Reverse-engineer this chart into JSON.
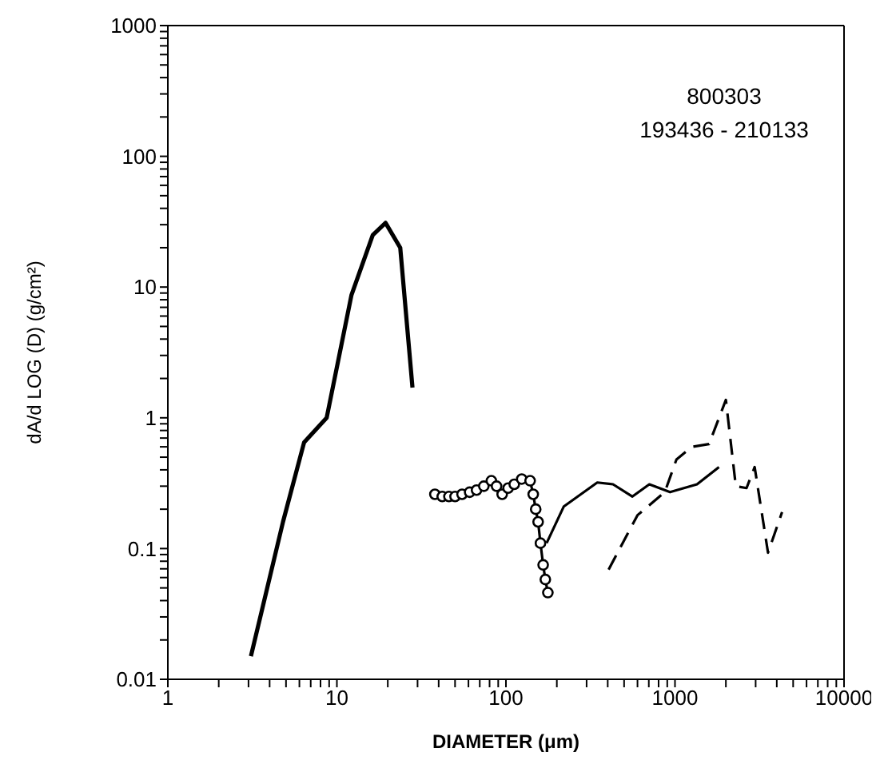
{
  "chart_data": {
    "type": "line",
    "xlabel": "DIAMETER  (μm)",
    "ylabel": "dA/d LOG (D)  (g/cm²)",
    "annotations": [
      "800303",
      "193436 - 210133"
    ],
    "log": "xy",
    "xlim": [
      1,
      10000
    ],
    "ylim": [
      0.01,
      1000
    ],
    "xticks": [
      1,
      {
        "value": 2,
        "label": null
      },
      {
        "value": 3,
        "label": null
      },
      {
        "value": 4,
        "label": null
      },
      {
        "value": 5,
        "label": null
      },
      {
        "value": 6,
        "label": null
      },
      {
        "value": 7,
        "label": null
      },
      {
        "value": 8,
        "label": null
      },
      {
        "value": 9,
        "label": null
      },
      10,
      {
        "value": 20,
        "label": null
      },
      {
        "value": 30,
        "label": null
      },
      {
        "value": 40,
        "label": null
      },
      {
        "value": 50,
        "label": null
      },
      {
        "value": 60,
        "label": null
      },
      {
        "value": 70,
        "label": null
      },
      {
        "value": 80,
        "label": null
      },
      {
        "value": 90,
        "label": null
      },
      100,
      {
        "value": 200,
        "label": null
      },
      {
        "value": 300,
        "label": null
      },
      {
        "value": 400,
        "label": null
      },
      {
        "value": 500,
        "label": null
      },
      {
        "value": 600,
        "label": null
      },
      {
        "value": 700,
        "label": null
      },
      {
        "value": 800,
        "label": null
      },
      {
        "value": 900,
        "label": null
      },
      1000,
      {
        "value": 2000,
        "label": null
      },
      {
        "value": 3000,
        "label": null
      },
      {
        "value": 4000,
        "label": null
      },
      {
        "value": 5000,
        "label": null
      },
      {
        "value": 6000,
        "label": null
      },
      {
        "value": 7000,
        "label": null
      },
      {
        "value": 8000,
        "label": null
      },
      {
        "value": 9000,
        "label": null
      },
      10000
    ],
    "yticks": [
      {
        "value": 0.01,
        "label": "0.01"
      },
      {
        "value": 0.02,
        "label": null
      },
      {
        "value": 0.03,
        "label": null
      },
      {
        "value": 0.04,
        "label": null
      },
      {
        "value": 0.05,
        "label": null
      },
      {
        "value": 0.06,
        "label": null
      },
      {
        "value": 0.07,
        "label": null
      },
      {
        "value": 0.08,
        "label": null
      },
      {
        "value": 0.09,
        "label": null
      },
      0.1,
      {
        "value": 0.2,
        "label": null
      },
      {
        "value": 0.3,
        "label": null
      },
      {
        "value": 0.4,
        "label": null
      },
      {
        "value": 0.5,
        "label": null
      },
      {
        "value": 0.6,
        "label": null
      },
      {
        "value": 0.7,
        "label": null
      },
      {
        "value": 0.8,
        "label": null
      },
      {
        "value": 0.9,
        "label": null
      },
      1,
      {
        "value": 2,
        "label": null
      },
      {
        "value": 3,
        "label": null
      },
      {
        "value": 4,
        "label": null
      },
      {
        "value": 5,
        "label": null
      },
      {
        "value": 6,
        "label": null
      },
      {
        "value": 7,
        "label": null
      },
      {
        "value": 8,
        "label": null
      },
      {
        "value": 9,
        "label": null
      },
      10,
      {
        "value": 20,
        "label": null
      },
      {
        "value": 30,
        "label": null
      },
      {
        "value": 40,
        "label": null
      },
      {
        "value": 50,
        "label": null
      },
      {
        "value": 60,
        "label": null
      },
      {
        "value": 70,
        "label": null
      },
      {
        "value": 80,
        "label": null
      },
      {
        "value": 90,
        "label": null
      },
      100,
      {
        "value": 200,
        "label": null
      },
      {
        "value": 300,
        "label": null
      },
      {
        "value": 400,
        "label": null
      },
      {
        "value": 500,
        "label": null
      },
      {
        "value": 600,
        "label": null
      },
      {
        "value": 700,
        "label": null
      },
      {
        "value": 800,
        "label": null
      },
      {
        "value": 900,
        "label": null
      },
      1000
    ],
    "series": [
      {
        "color": "#000000",
        "line_style": "solid",
        "marker": "none",
        "x": [
          3.1,
          4.8,
          6.4,
          8.7,
          12.2,
          16.3,
          19.4,
          23.7,
          28
        ],
        "values": [
          0.015,
          0.16,
          0.65,
          1.0,
          8.7,
          25,
          31,
          20,
          1.7
        ]
      },
      {
        "color": "#000000",
        "line_style": "solid",
        "marker": "circle",
        "x": [
          38,
          42,
          46,
          50,
          55,
          61,
          67,
          74,
          82,
          88,
          95,
          103,
          112,
          124,
          139,
          145,
          150,
          155,
          160,
          166,
          171,
          177
        ],
        "values": [
          0.26,
          0.25,
          0.25,
          0.25,
          0.26,
          0.27,
          0.28,
          0.3,
          0.33,
          0.3,
          0.26,
          0.29,
          0.31,
          0.34,
          0.33,
          0.26,
          0.2,
          0.16,
          0.11,
          0.075,
          0.058,
          0.046
        ]
      },
      {
        "color": "#000000",
        "line_style": "solid",
        "marker": "none",
        "x": [
          174,
          220,
          347,
          430,
          560,
          705,
          935,
          1350,
          1820
        ],
        "values": [
          0.11,
          0.21,
          0.32,
          0.31,
          0.25,
          0.31,
          0.27,
          0.31,
          0.42
        ]
      },
      {
        "color": "#000000",
        "line_style": "dashed",
        "marker": "none",
        "x": [
          405,
          600,
          870,
          1020,
          1260,
          1590,
          2000,
          2290,
          2650,
          2960,
          3550,
          4300
        ],
        "values": [
          0.069,
          0.18,
          0.27,
          0.48,
          0.6,
          0.63,
          1.37,
          0.3,
          0.29,
          0.42,
          0.093,
          0.19
        ]
      }
    ]
  }
}
